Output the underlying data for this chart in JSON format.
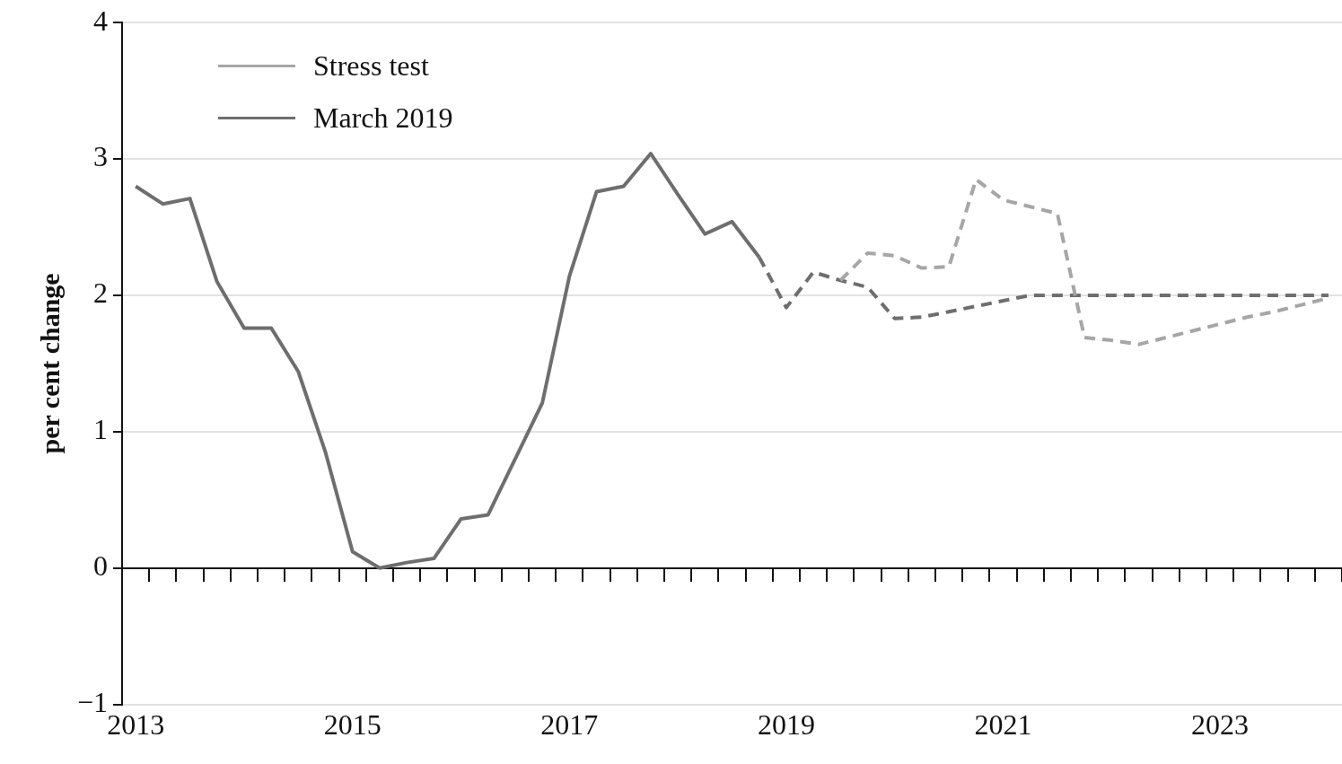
{
  "chart_data": {
    "type": "line",
    "ylabel": "per cent change",
    "categories": [
      "2013",
      null,
      null,
      null,
      null,
      null,
      null,
      null,
      "2015",
      null,
      null,
      null,
      null,
      null,
      null,
      null,
      "2017",
      null,
      null,
      null,
      null,
      null,
      null,
      null,
      "2019",
      null,
      null,
      null,
      null,
      null,
      null,
      null,
      "2021",
      null,
      null,
      null,
      null,
      null,
      null,
      null,
      "2023",
      null,
      null,
      null,
      null
    ],
    "series": [
      {
        "name": "Stress test",
        "color": "#a6a6a6",
        "line_style": "dashed",
        "values": [
          null,
          null,
          null,
          null,
          null,
          null,
          null,
          null,
          null,
          null,
          null,
          null,
          null,
          null,
          null,
          null,
          null,
          null,
          null,
          null,
          null,
          null,
          null,
          null,
          null,
          null,
          2.11,
          2.31,
          2.29,
          2.2,
          2.21,
          2.85,
          2.7,
          2.65,
          2.6,
          1.69,
          1.67,
          1.64,
          1.69,
          1.74,
          1.79,
          1.84,
          1.88,
          1.93,
          1.98
        ]
      },
      {
        "name": "March 2019",
        "color": "#6e6e6e",
        "line_style": "solid",
        "values": [
          2.8,
          2.67,
          2.71,
          2.1,
          1.76,
          1.76,
          1.44,
          0.85,
          0.12,
          0.0,
          0.04,
          0.07,
          0.36,
          0.39,
          0.8,
          1.21,
          2.14,
          2.76,
          2.8,
          3.04,
          2.74,
          2.45,
          2.54,
          2.28,
          null,
          null,
          null,
          null,
          null,
          null,
          null,
          null,
          null,
          null,
          null,
          null,
          null,
          null,
          null,
          null,
          null,
          null,
          null,
          null,
          null
        ]
      },
      {
        "color": "#6e6e6e",
        "line_style": "dashed",
        "values": [
          null,
          null,
          null,
          null,
          null,
          null,
          null,
          null,
          null,
          null,
          null,
          null,
          null,
          null,
          null,
          null,
          null,
          null,
          null,
          null,
          null,
          null,
          null,
          2.28,
          1.91,
          2.17,
          2.11,
          2.06,
          1.83,
          1.84,
          1.88,
          1.92,
          1.96,
          2.0,
          2.0,
          2.0,
          2.0,
          2.0,
          2.0,
          2.0,
          2.0,
          2.0,
          2.0,
          2.0,
          2.0
        ]
      }
    ],
    "ylim": [
      -1,
      4
    ],
    "yticks": [
      {
        "value": -1,
        "label": "−1"
      },
      0,
      1,
      2,
      3,
      4
    ],
    "grid": "y",
    "legend": "top left",
    "marker": "none"
  }
}
